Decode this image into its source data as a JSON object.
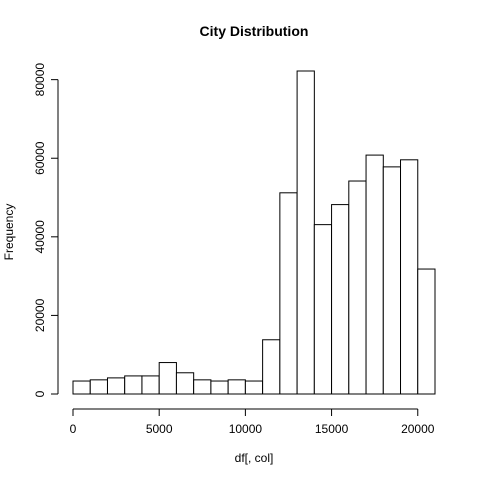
{
  "chart_data": {
    "type": "bar",
    "title": "City  Distribution",
    "xlabel": "df[, col]",
    "ylabel": "Frequency",
    "bin_width": 1000,
    "bin_start": 0,
    "values": [
      3300,
      3600,
      4100,
      4600,
      4600,
      8000,
      5400,
      3600,
      3300,
      3600,
      3300,
      13800,
      51200,
      82200,
      43100,
      48200,
      54200,
      60800,
      57800,
      59600,
      31800
    ],
    "xlim": [
      0,
      21000
    ],
    "ylim": [
      0,
      82200
    ],
    "x_ticks": [
      0,
      5000,
      10000,
      15000,
      20000
    ],
    "y_ticks": [
      0,
      20000,
      40000,
      60000,
      80000
    ],
    "x_tick_labels": [
      "0",
      "5000",
      "10000",
      "15000",
      "20000"
    ],
    "y_tick_labels": [
      "0",
      "20000",
      "40000",
      "60000",
      "80000"
    ],
    "grid": false
  }
}
